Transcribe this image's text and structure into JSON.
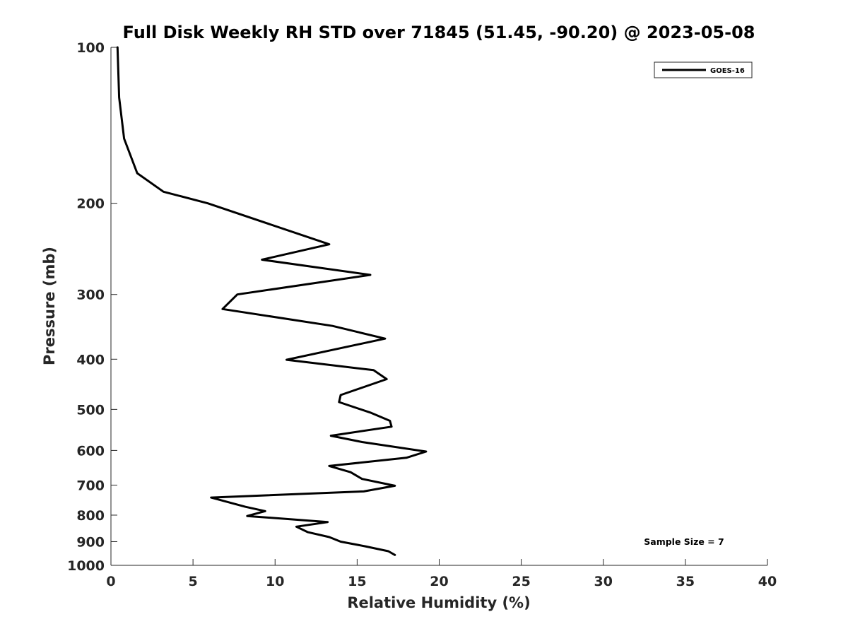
{
  "chart_data": {
    "type": "line",
    "title": "Full Disk Weekly RH STD over 71845 (51.45, -90.20) @ 2023-05-08",
    "xlabel": "Relative Humidity (%)",
    "ylabel": "Pressure (mb)",
    "xlim": [
      0,
      40
    ],
    "ylim": [
      100,
      1000
    ],
    "y_scale": "log",
    "y_reversed": true,
    "grid": false,
    "legend_position": "top-right",
    "x_ticks": [
      0,
      5,
      10,
      15,
      20,
      25,
      30,
      35,
      40
    ],
    "y_ticks": [
      100,
      200,
      300,
      400,
      500,
      600,
      700,
      800,
      900,
      1000
    ],
    "annotation": "Sample Size = 7",
    "series": [
      {
        "name": "GOES-16",
        "color": "#000000",
        "points": [
          [
            0.4,
            100
          ],
          [
            0.5,
            125
          ],
          [
            0.8,
            150
          ],
          [
            1.6,
            175
          ],
          [
            3.2,
            190
          ],
          [
            5.9,
            200
          ],
          [
            13.3,
            240
          ],
          [
            9.2,
            257
          ],
          [
            15.8,
            275
          ],
          [
            7.7,
            300
          ],
          [
            6.8,
            320
          ],
          [
            13.5,
            345
          ],
          [
            16.7,
            365
          ],
          [
            10.7,
            401
          ],
          [
            16.0,
            420
          ],
          [
            16.8,
            437
          ],
          [
            14.0,
            469
          ],
          [
            13.9,
            484
          ],
          [
            15.8,
            507
          ],
          [
            17.0,
            526
          ],
          [
            17.1,
            540
          ],
          [
            13.4,
            562
          ],
          [
            15.3,
            578
          ],
          [
            19.2,
            603
          ],
          [
            18.0,
            620
          ],
          [
            13.3,
            643
          ],
          [
            14.6,
            661
          ],
          [
            15.3,
            681
          ],
          [
            17.3,
            702
          ],
          [
            15.4,
            720
          ],
          [
            6.1,
            740
          ],
          [
            8.2,
            771
          ],
          [
            9.4,
            786
          ],
          [
            8.3,
            803
          ],
          [
            13.2,
            825
          ],
          [
            11.3,
            842
          ],
          [
            12.0,
            863
          ],
          [
            13.3,
            882
          ],
          [
            14.0,
            900
          ],
          [
            15.5,
            919
          ],
          [
            16.9,
            939
          ],
          [
            17.3,
            955
          ]
        ]
      }
    ]
  }
}
